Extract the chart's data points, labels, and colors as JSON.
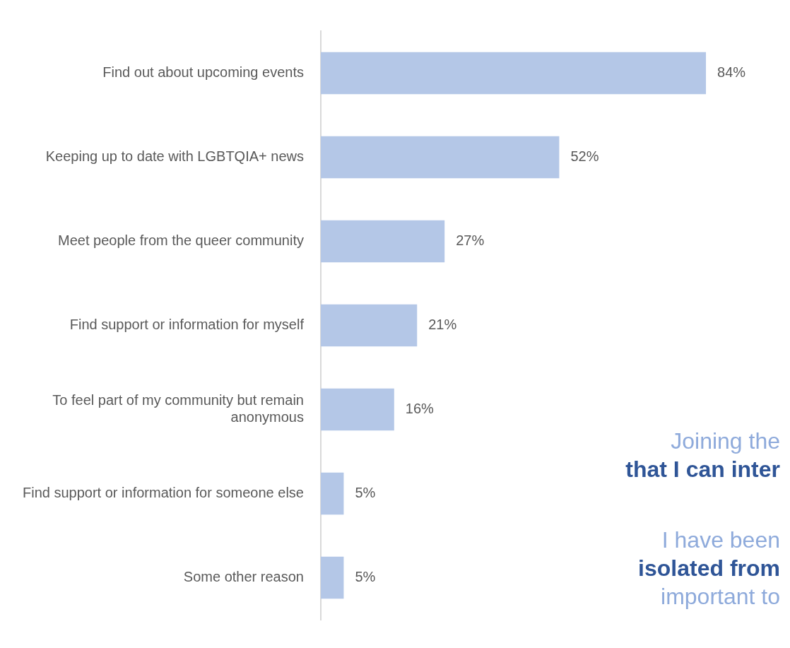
{
  "chart_data": {
    "type": "bar",
    "orientation": "horizontal",
    "categories": [
      "Find out about upcoming events",
      "Keeping up to date with LGBTQIA+ news",
      "Meet people from the queer community",
      "Find support or information for myself",
      "To feel part of my community but remain anonymous",
      "Find support or information for someone else",
      "Some other reason"
    ],
    "values": [
      84,
      52,
      27,
      21,
      16,
      5,
      5
    ],
    "value_labels": [
      "84%",
      "52%",
      "27%",
      "21%",
      "16%",
      "5%",
      "5%"
    ],
    "color": "#b4c7e7",
    "tick_labels": "y",
    "grid": false,
    "legend": false,
    "annotations": [
      "Joining the",
      "that I can inter",
      "I have been",
      "isolated from",
      "important to"
    ]
  }
}
